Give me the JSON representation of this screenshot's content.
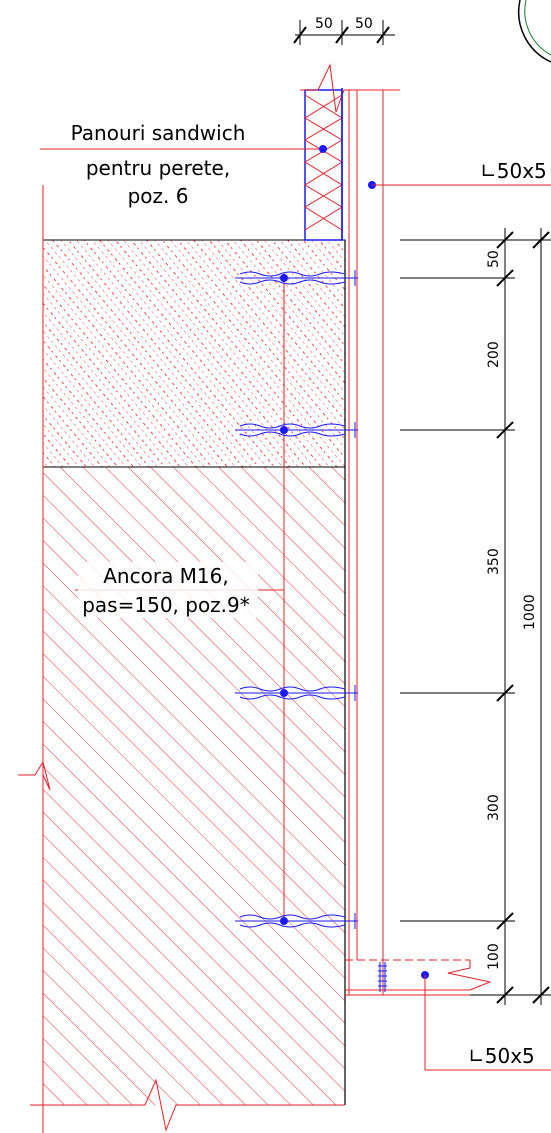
{
  "labels": {
    "sandwich_line1": "Panouri sandwich",
    "sandwich_line2": "pentru perete,",
    "sandwich_line3": "poz. 6",
    "angle_top": "∟50x5",
    "anchor_line1": "Ancora M16,",
    "anchor_line2": "pas=150, poz.9*",
    "angle_bottom": "∟50x5"
  },
  "dimensions": {
    "top_a": "50",
    "top_b": "50",
    "v_50": "50",
    "v_200": "200",
    "v_350": "350",
    "v_300": "300",
    "v_100": "100",
    "v_total": "1000"
  },
  "colors": {
    "outline": "#e8202a",
    "hatch": "#f04a50",
    "blue": "#1a1aff",
    "text": "#000000",
    "dim_line": "#000000"
  }
}
